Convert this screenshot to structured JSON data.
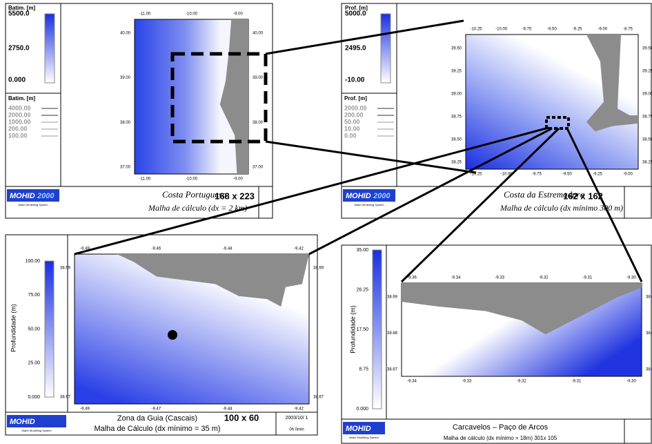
{
  "panels": [
    {
      "colorbar": {
        "title": "Batim. [m]",
        "labels": [
          "5500.0",
          "2750.0",
          "0.000"
        ]
      },
      "contours": {
        "title": "Batim. [m]",
        "labels": [
          "4000.00",
          "2000.00",
          "1000.00",
          "200.00",
          "100.00"
        ]
      },
      "map": {
        "top_ticks": [
          "-11.00",
          "-10.00",
          "-9.00"
        ],
        "bottom_ticks": [
          "-11.00",
          "-10.00",
          "-9.00"
        ],
        "left_ticks": [
          "40.00",
          "39.00",
          "38.00",
          "37.00"
        ],
        "right_ticks": [
          "40.00",
          "39.00",
          "38.00",
          "37.00"
        ]
      },
      "footer": {
        "logo": "MOHID",
        "logo_year": "2000",
        "logo_sub": "Water Modelling System",
        "name": "Costa Portuguesa",
        "grid_size": "168 x 223",
        "caption": "Malha de cálculo (dx = 2 km)"
      }
    },
    {
      "colorbar": {
        "title": "Prof. [m]",
        "labels": [
          "5000.0",
          "2495.0",
          "-10.00"
        ]
      },
      "contours": {
        "title": "Prof. [m]",
        "labels": [
          "2000.00",
          "200.00",
          "50.00",
          "10.00",
          "0.00"
        ]
      },
      "map": {
        "top_ticks": [
          "-10.25",
          "-10.00",
          "-9.75",
          "-9.50",
          "-9.25",
          "-9.00",
          "-8.75"
        ],
        "bottom_ticks": [
          "-10.25",
          "-10.00",
          "-9.75",
          "-9.50",
          "-9.25",
          "-9.00"
        ],
        "left_ticks": [
          "39.50",
          "39.25",
          "39.00",
          "38.75",
          "38.50",
          "38.25"
        ],
        "right_ticks": [
          "39.50",
          "39.25",
          "39.00",
          "38.75",
          "38.50",
          "38.25"
        ]
      },
      "footer": {
        "logo": "MOHID",
        "logo_year": "2000",
        "logo_sub": "Water Modelling System",
        "name": "Costa da Estremadura",
        "grid_size": "162 x 162",
        "caption": "Malha de cálculo (dx mínimo 300 m)"
      }
    },
    {
      "colorbar": {
        "title": "Profundidade  (m)",
        "labels": [
          "100.00",
          "75.00",
          "50.00",
          "25.00",
          "0.000"
        ]
      },
      "map": {
        "top_ticks": [
          "-9.49",
          "-9.46",
          "-9.44",
          "-9.42"
        ],
        "bottom_ticks": [
          "-9.49",
          "-9.47",
          "-9.44",
          "-9.42"
        ],
        "left_ticks": [
          "38.69",
          "38.67"
        ],
        "right_ticks": [
          "38.69",
          "38.67"
        ]
      },
      "footer": {
        "logo": "MOHID",
        "logo_sub": "Water Modelling System",
        "name": "Zona da Guia (Cascais)",
        "grid_size": "100 x 60",
        "caption": "Malha de Cálculo (dx mínimo = 35 m)",
        "date": "2003/10/ 1",
        "time": "0h 0min"
      }
    },
    {
      "colorbar": {
        "title": "Profundidade  (m)",
        "labels": [
          "35.00",
          "26.25",
          "17.50",
          "8.75",
          "0.000"
        ]
      },
      "map": {
        "top_ticks": [
          "-9.36",
          "-9.34",
          "-9.33",
          "-9.32",
          "-9.31",
          "-9.30"
        ],
        "bottom_ticks": [
          "-9.34",
          "-9.33",
          "-9.32",
          "-9.31",
          "-9.30"
        ],
        "left_ticks": [
          "38.69",
          "38.68",
          "38.67"
        ],
        "right_ticks": [
          "38.69",
          "38.68",
          "38.67"
        ]
      },
      "footer": {
        "logo": "MOHID",
        "logo_sub": "Water Modelling System",
        "name": "Carcavelos – Paço de Arcos",
        "caption": "Malha de cálculo (dx mínimo = 18m)  301x 105"
      }
    }
  ]
}
